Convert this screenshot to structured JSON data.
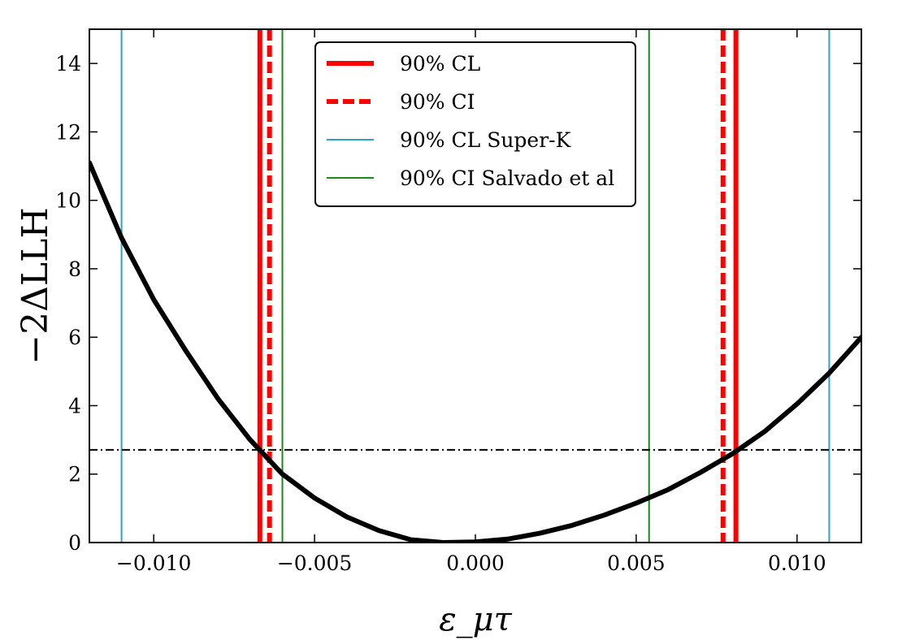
{
  "chart_data": {
    "type": "line",
    "xlabel": "ε_μτ",
    "ylabel": "−2ΔLLH",
    "xlim": [
      -0.012,
      0.012
    ],
    "ylim": [
      0,
      15
    ],
    "x_ticks": [
      -0.01,
      -0.005,
      0.0,
      0.005,
      0.01
    ],
    "x_tick_labels": [
      "−0.010",
      "−0.005",
      "0.000",
      "0.005",
      "0.010"
    ],
    "y_ticks": [
      0,
      2,
      4,
      6,
      8,
      10,
      12,
      14
    ],
    "y_tick_labels": [
      "0",
      "2",
      "4",
      "6",
      "8",
      "10",
      "12",
      "14"
    ],
    "curve": {
      "name": "−2ΔLLH profile",
      "color": "#000000",
      "x": [
        -0.012,
        -0.011,
        -0.01,
        -0.009,
        -0.008,
        -0.007,
        -0.006,
        -0.005,
        -0.004,
        -0.003,
        -0.002,
        -0.001,
        0.0,
        0.001,
        0.002,
        0.003,
        0.004,
        0.005,
        0.006,
        0.007,
        0.008,
        0.009,
        0.01,
        0.011,
        0.012
      ],
      "y": [
        11.1,
        8.9,
        7.1,
        5.6,
        4.2,
        3.0,
        2.0,
        1.3,
        0.75,
        0.35,
        0.08,
        0.0,
        0.02,
        0.1,
        0.27,
        0.5,
        0.8,
        1.15,
        1.55,
        2.05,
        2.6,
        3.25,
        4.05,
        4.95,
        6.0
      ]
    },
    "threshold": {
      "y": 2.71,
      "style": "dash-dot",
      "color": "#000000"
    },
    "vertical_lines": [
      {
        "series": "90% CL",
        "x": -0.0067,
        "color": "#ff0000",
        "style": "solid-thick"
      },
      {
        "series": "90% CL",
        "x": 0.0081,
        "color": "#ff0000",
        "style": "solid-thick"
      },
      {
        "series": "90% CI",
        "x": -0.0064,
        "color": "#ff0000",
        "style": "dashed-thick"
      },
      {
        "series": "90% CI",
        "x": 0.0077,
        "color": "#ff0000",
        "style": "dashed-thick"
      },
      {
        "series": "90% CL Super-K",
        "x": -0.011,
        "color": "#2fa0c8",
        "style": "solid-thin"
      },
      {
        "series": "90% CL Super-K",
        "x": 0.011,
        "color": "#2fa0c8",
        "style": "solid-thin"
      },
      {
        "series": "90% CI Salvado et al",
        "x": -0.006,
        "color": "#1a8a1a",
        "style": "solid-thin"
      },
      {
        "series": "90% CI Salvado et al",
        "x": 0.0054,
        "color": "#1a8a1a",
        "style": "solid-thin"
      }
    ],
    "legend": {
      "placement": "top-center",
      "entries": [
        {
          "label": "90% CL",
          "color": "#ff0000",
          "style": "solid-thick"
        },
        {
          "label": "90% CI",
          "color": "#ff0000",
          "style": "dashed-thick"
        },
        {
          "label": "90% CL Super-K",
          "color": "#2fa0c8",
          "style": "solid-thin"
        },
        {
          "label": "90% CI Salvado et al",
          "color": "#1a8a1a",
          "style": "solid-thin"
        }
      ]
    }
  }
}
